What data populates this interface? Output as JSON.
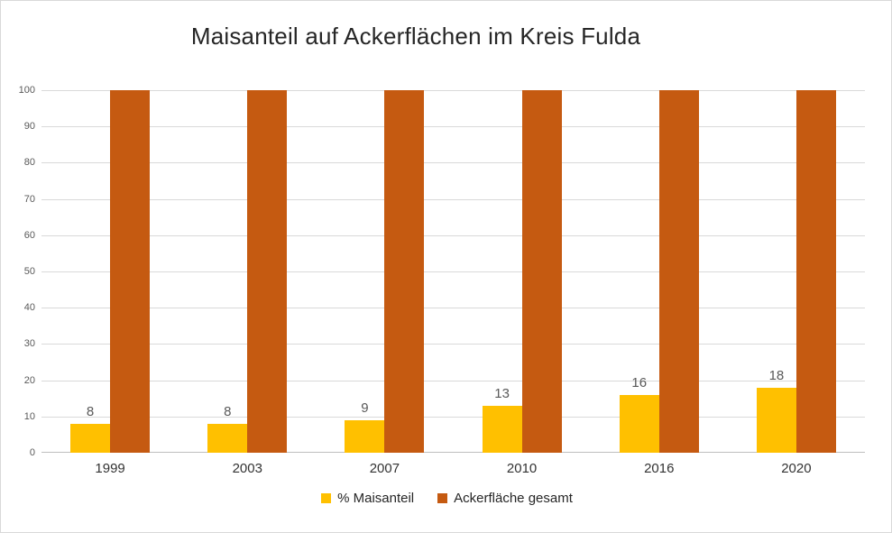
{
  "title": "Maisanteil auf Ackerflächen im Kreis Fulda",
  "colors": {
    "maisanteil_bar": "#FFC000",
    "ackerflaeche_bar": "#C55A11",
    "gridline": "#D9D9D9",
    "axis_line": "#BFBFBF",
    "ytick_label": "#595959",
    "data_label": "#595959",
    "category_label": "#333333",
    "title_text": "#262626",
    "chart_border": "#D9D9D9",
    "background": "#FFFFFF"
  },
  "chart_data": {
    "type": "bar",
    "title": "Maisanteil auf Ackerflächen im Kreis Fulda",
    "categories": [
      "1999",
      "2003",
      "2007",
      "2010",
      "2016",
      "2020"
    ],
    "series": [
      {
        "name": "% Maisanteil",
        "color": "#FFC000",
        "values": [
          8,
          8,
          9,
          13,
          16,
          18
        ],
        "data_labels": [
          "8",
          "8",
          "9",
          "13",
          "16",
          "18"
        ]
      },
      {
        "name": "Ackerfläche gesamt",
        "color": "#C55A11",
        "values": [
          100,
          100,
          100,
          100,
          100,
          100
        ],
        "data_labels": []
      }
    ],
    "xlabel": "",
    "ylabel": "",
    "ylim": [
      0,
      100
    ],
    "yticks": [
      0,
      10,
      20,
      30,
      40,
      50,
      60,
      70,
      80,
      90,
      100
    ],
    "grid": true,
    "legend_position": "bottom"
  }
}
